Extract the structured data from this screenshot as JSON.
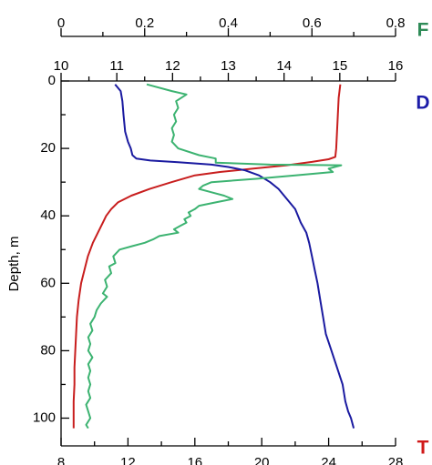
{
  "chart_data": {
    "type": "line",
    "ylabel": "Depth, m",
    "y_axis": {
      "range": [
        0,
        105
      ],
      "ticks": [
        0,
        20,
        40,
        60,
        80,
        100
      ],
      "reversed": true
    },
    "axes": {
      "F": {
        "letter": "F",
        "color": "#2e8b57",
        "range": [
          0,
          0.8
        ],
        "ticks": [
          "0",
          "0.2",
          "0.4",
          "0.6",
          "0.8"
        ],
        "tick_values": [
          0,
          0.2,
          0.4,
          0.6,
          0.8
        ]
      },
      "D": {
        "letter": "D",
        "color": "#1c1ca8",
        "range": [
          10,
          16
        ],
        "ticks": [
          "10",
          "11",
          "12",
          "13",
          "14",
          "15",
          "16"
        ],
        "tick_values": [
          10,
          11,
          12,
          13,
          14,
          15,
          16
        ]
      },
      "T": {
        "letter": "T",
        "color": "#d01818",
        "range": [
          8,
          28
        ],
        "ticks": [
          "8",
          "12",
          "16",
          "20",
          "24",
          "28"
        ],
        "tick_values": [
          8,
          12,
          16,
          20,
          24,
          28
        ]
      }
    },
    "series": [
      {
        "axis": "T",
        "color": "#c81e1e",
        "points": [
          [
            24.7,
            1
          ],
          [
            24.6,
            5
          ],
          [
            24.55,
            10
          ],
          [
            24.5,
            15
          ],
          [
            24.45,
            20
          ],
          [
            24.4,
            22.5
          ],
          [
            24.0,
            23.2
          ],
          [
            23.0,
            24
          ],
          [
            21.5,
            25
          ],
          [
            19.5,
            26
          ],
          [
            17.5,
            27
          ],
          [
            16.0,
            28
          ],
          [
            14.6,
            30
          ],
          [
            13.3,
            32
          ],
          [
            12.2,
            34
          ],
          [
            11.4,
            36
          ],
          [
            11.0,
            38
          ],
          [
            10.7,
            40
          ],
          [
            10.5,
            42
          ],
          [
            10.2,
            45
          ],
          [
            9.9,
            48
          ],
          [
            9.6,
            52
          ],
          [
            9.4,
            56
          ],
          [
            9.2,
            60
          ],
          [
            9.05,
            65
          ],
          [
            8.95,
            70
          ],
          [
            8.9,
            75
          ],
          [
            8.85,
            80
          ],
          [
            8.8,
            85
          ],
          [
            8.8,
            90
          ],
          [
            8.75,
            95
          ],
          [
            8.75,
            100
          ],
          [
            8.75,
            103
          ]
        ]
      },
      {
        "axis": "D",
        "color": "#1a1aa0",
        "points": [
          [
            10.97,
            1
          ],
          [
            11.07,
            3
          ],
          [
            11.1,
            6
          ],
          [
            11.12,
            10
          ],
          [
            11.15,
            15
          ],
          [
            11.2,
            18
          ],
          [
            11.25,
            20
          ],
          [
            11.28,
            22
          ],
          [
            11.35,
            23
          ],
          [
            11.6,
            23.6
          ],
          [
            12.1,
            24.1
          ],
          [
            12.7,
            24.8
          ],
          [
            13.0,
            25.5
          ],
          [
            13.3,
            26.5
          ],
          [
            13.55,
            28
          ],
          [
            13.75,
            30
          ],
          [
            13.9,
            32
          ],
          [
            14.0,
            34
          ],
          [
            14.1,
            36
          ],
          [
            14.2,
            38
          ],
          [
            14.25,
            40
          ],
          [
            14.3,
            42
          ],
          [
            14.4,
            45
          ],
          [
            14.45,
            48
          ],
          [
            14.5,
            52
          ],
          [
            14.55,
            56
          ],
          [
            14.6,
            60
          ],
          [
            14.65,
            65
          ],
          [
            14.7,
            70
          ],
          [
            14.75,
            75
          ],
          [
            14.85,
            80
          ],
          [
            14.95,
            85
          ],
          [
            15.05,
            90
          ],
          [
            15.1,
            95
          ],
          [
            15.15,
            98
          ],
          [
            15.2,
            100
          ],
          [
            15.25,
            103
          ]
        ]
      },
      {
        "axis": "F",
        "color": "#3cb371",
        "points": [
          [
            0.205,
            1
          ],
          [
            0.265,
            3
          ],
          [
            0.3,
            4
          ],
          [
            0.275,
            6
          ],
          [
            0.28,
            8
          ],
          [
            0.27,
            10
          ],
          [
            0.275,
            12
          ],
          [
            0.265,
            14
          ],
          [
            0.27,
            16
          ],
          [
            0.265,
            18
          ],
          [
            0.28,
            20
          ],
          [
            0.33,
            22
          ],
          [
            0.37,
            23
          ],
          [
            0.37,
            24.2
          ],
          [
            0.5,
            24.8
          ],
          [
            0.67,
            25
          ],
          [
            0.64,
            26
          ],
          [
            0.65,
            27
          ],
          [
            0.56,
            28
          ],
          [
            0.47,
            29
          ],
          [
            0.36,
            30
          ],
          [
            0.34,
            31
          ],
          [
            0.33,
            32
          ],
          [
            0.36,
            33
          ],
          [
            0.39,
            34
          ],
          [
            0.41,
            35
          ],
          [
            0.37,
            36
          ],
          [
            0.33,
            37
          ],
          [
            0.32,
            38
          ],
          [
            0.305,
            39
          ],
          [
            0.31,
            40
          ],
          [
            0.295,
            41
          ],
          [
            0.3,
            42
          ],
          [
            0.285,
            43
          ],
          [
            0.27,
            44
          ],
          [
            0.28,
            45
          ],
          [
            0.235,
            46
          ],
          [
            0.22,
            47
          ],
          [
            0.2,
            48
          ],
          [
            0.17,
            49
          ],
          [
            0.14,
            50
          ],
          [
            0.125,
            52
          ],
          [
            0.13,
            54
          ],
          [
            0.115,
            55
          ],
          [
            0.12,
            57
          ],
          [
            0.105,
            59
          ],
          [
            0.11,
            61
          ],
          [
            0.1,
            63
          ],
          [
            0.11,
            64
          ],
          [
            0.095,
            66
          ],
          [
            0.085,
            68
          ],
          [
            0.08,
            70
          ],
          [
            0.07,
            72
          ],
          [
            0.075,
            74
          ],
          [
            0.065,
            76
          ],
          [
            0.07,
            78
          ],
          [
            0.065,
            80
          ],
          [
            0.075,
            82
          ],
          [
            0.065,
            84
          ],
          [
            0.07,
            86
          ],
          [
            0.065,
            88
          ],
          [
            0.07,
            90
          ],
          [
            0.065,
            92
          ],
          [
            0.07,
            94
          ],
          [
            0.06,
            96
          ],
          [
            0.065,
            98
          ],
          [
            0.07,
            100
          ],
          [
            0.06,
            102
          ],
          [
            0.065,
            103
          ]
        ]
      }
    ]
  }
}
